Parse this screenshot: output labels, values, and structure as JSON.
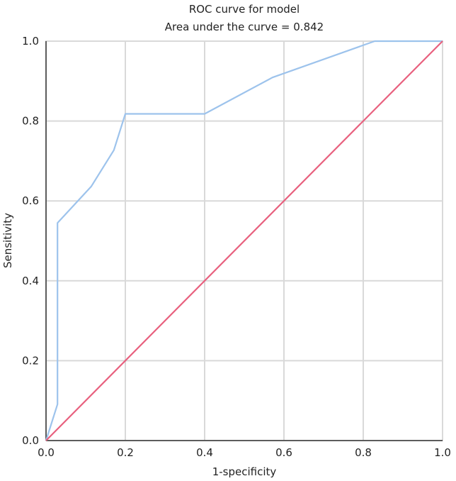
{
  "chart_data": {
    "type": "line",
    "title": "ROC curve for model",
    "subtitle": "Area under the curve = 0.842",
    "xlabel": "1-specificity",
    "ylabel": "Sensitivity",
    "xlim": [
      0,
      1
    ],
    "ylim": [
      0,
      1
    ],
    "xticks": [
      "0.0",
      "0.2",
      "0.4",
      "0.6",
      "0.8",
      "1.0"
    ],
    "yticks": [
      "0.0",
      "0.2",
      "0.4",
      "0.6",
      "0.8",
      "1.0"
    ],
    "grid": true,
    "legend": "none",
    "series": [
      {
        "color": "#9dc3ec",
        "x": [
          0,
          0.029,
          0.029,
          0.114,
          0.171,
          0.2,
          0.4,
          0.571,
          0.829,
          1.0
        ],
        "y": [
          0,
          0.091,
          0.545,
          0.636,
          0.727,
          0.818,
          0.818,
          0.909,
          1.0,
          1.0
        ]
      },
      {
        "color": "#e8607e",
        "x": [
          0,
          1
        ],
        "y": [
          0,
          1
        ]
      }
    ]
  }
}
